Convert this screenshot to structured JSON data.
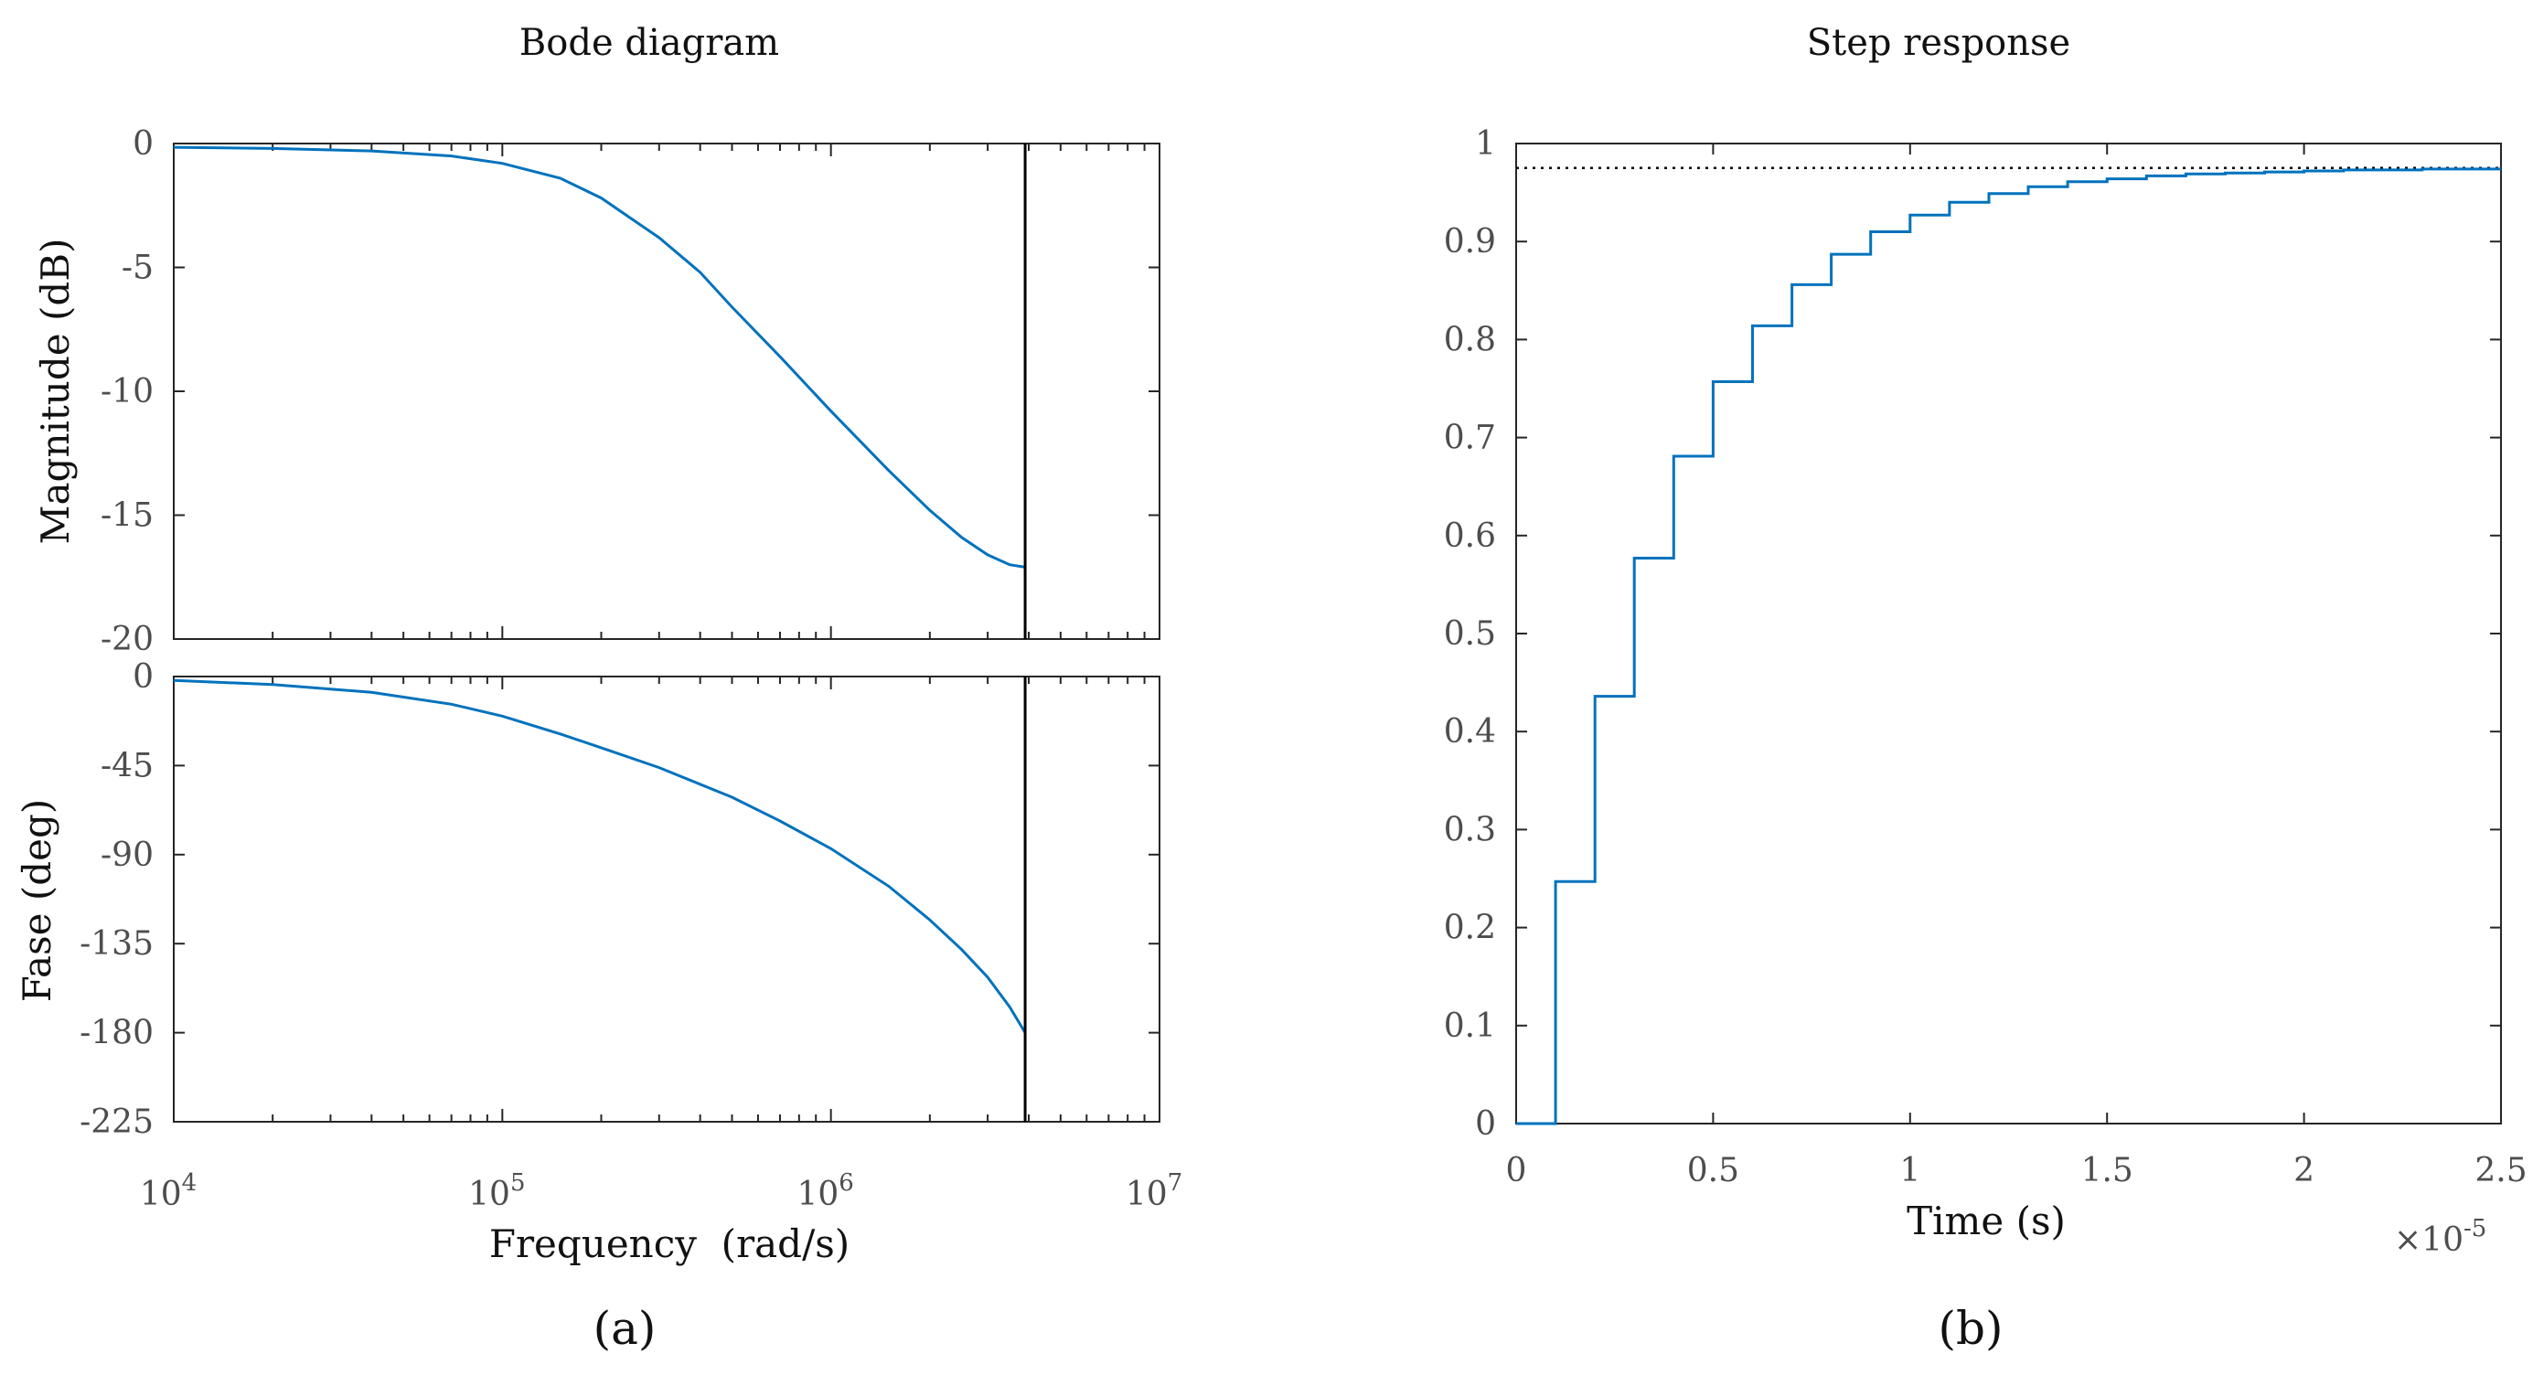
{
  "captions": {
    "a": "(a)",
    "b": "(b)"
  },
  "chart_data": [
    {
      "id": "bode",
      "type": "line",
      "title": "Bode diagram",
      "xlabel": "Frequency  (rad/s)",
      "xscale": "log",
      "xlim": [
        10000,
        10000000
      ],
      "xticks": [
        {
          "value": 10000,
          "base": "10",
          "exp": "4"
        },
        {
          "value": 100000,
          "base": "10",
          "exp": "5"
        },
        {
          "value": 1000000,
          "base": "10",
          "exp": "6"
        },
        {
          "value": 10000000,
          "base": "10",
          "exp": "7"
        }
      ],
      "cursor_frequency": 3900000,
      "magnitude": {
        "ylabel": "Magnitude (dB)",
        "ylim": [
          -20,
          0
        ],
        "yticks": [
          0,
          -5,
          -10,
          -15,
          -20
        ],
        "ytick_labels": [
          "0",
          "-5",
          "-10",
          "-15",
          "-20"
        ],
        "series": [
          {
            "name": "Magnitude",
            "color": "#0072BD",
            "x": [
              10000,
              20000,
              40000,
              70000,
              100000,
              150000,
              200000,
              300000,
              400000,
              500000,
              700000,
              1000000,
              1500000,
              2000000,
              2500000,
              3000000,
              3500000,
              3900000
            ],
            "y": [
              -0.15,
              -0.2,
              -0.3,
              -0.5,
              -0.8,
              -1.4,
              -2.2,
              -3.8,
              -5.2,
              -6.6,
              -8.6,
              -10.8,
              -13.2,
              -14.8,
              -15.9,
              -16.6,
              -17.0,
              -17.1
            ]
          }
        ]
      },
      "phase": {
        "ylabel": "Fase (deg)",
        "ylim": [
          -225,
          0
        ],
        "yticks": [
          0,
          -45,
          -90,
          -135,
          -180,
          -225
        ],
        "ytick_labels": [
          "0",
          "-45",
          "-90",
          "-135",
          "-180",
          "-225"
        ],
        "series": [
          {
            "name": "Phase",
            "color": "#0072BD",
            "x": [
              10000,
              20000,
              40000,
              70000,
              100000,
              150000,
              200000,
              300000,
              500000,
              700000,
              1000000,
              1500000,
              2000000,
              2500000,
              3000000,
              3500000,
              3900000
            ],
            "y": [
              -2,
              -4,
              -8,
              -14,
              -20,
              -29,
              -36,
              -46,
              -61,
              -73,
              -87,
              -106,
              -123,
              -138,
              -152,
              -167,
              -180
            ]
          }
        ]
      }
    },
    {
      "id": "step",
      "type": "line",
      "title": "Step response",
      "xlabel": "Time (s)",
      "ylabel": "",
      "xlim": [
        0,
        2.5
      ],
      "xticks": [
        0,
        0.5,
        1,
        1.5,
        2,
        2.5
      ],
      "xtick_labels": [
        "0",
        "0.5",
        "1",
        "1.5",
        "2",
        "2.5"
      ],
      "x_multiplier": {
        "base": "×10",
        "exp": "-5"
      },
      "ylim": [
        0,
        1
      ],
      "yticks": [
        0,
        0.1,
        0.2,
        0.3,
        0.4,
        0.5,
        0.6,
        0.7,
        0.8,
        0.9,
        1
      ],
      "ytick_labels": [
        "0",
        "0.1",
        "0.2",
        "0.3",
        "0.4",
        "0.5",
        "0.6",
        "0.7",
        "0.8",
        "0.9",
        "1"
      ],
      "final_value": 0.975,
      "series": [
        {
          "name": "Step response",
          "color": "#0072BD",
          "style": "stairs",
          "x": [
            0,
            0.1,
            0.2,
            0.3,
            0.4,
            0.5,
            0.6,
            0.7,
            0.8,
            0.9,
            1.0,
            1.1,
            1.2,
            1.3,
            1.4,
            1.5,
            1.6,
            1.7,
            1.8,
            1.9,
            2.0,
            2.1,
            2.2,
            2.3,
            2.4,
            2.5
          ],
          "y": [
            0,
            0.247,
            0.436,
            0.577,
            0.681,
            0.757,
            0.814,
            0.856,
            0.887,
            0.91,
            0.927,
            0.94,
            0.949,
            0.956,
            0.961,
            0.964,
            0.967,
            0.969,
            0.97,
            0.971,
            0.972,
            0.973,
            0.973,
            0.974,
            0.974,
            0.974
          ]
        }
      ]
    }
  ]
}
